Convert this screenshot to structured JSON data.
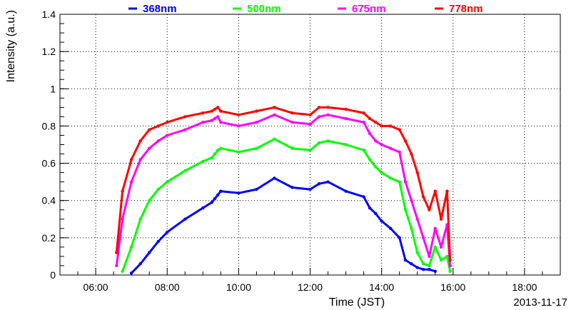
{
  "chart_data": {
    "type": "scatter",
    "title": "",
    "xlabel": "Time (JST)",
    "ylabel": "Intensity (a.u.)",
    "date": "2013-11-17",
    "xlim": [
      "05:00",
      "19:00"
    ],
    "ylim": [
      0,
      1.4
    ],
    "grid": true,
    "legend_position": "top",
    "x_ticks": [
      "06:00",
      "08:00",
      "10:00",
      "12:00",
      "14:00",
      "16:00",
      "18:00"
    ],
    "y_ticks": [
      "0",
      "0.2",
      "0.4",
      "0.6",
      "0.8",
      "1",
      "1.2",
      "1.4"
    ],
    "x": [
      "06:35",
      "06:45",
      "07:00",
      "07:15",
      "07:30",
      "07:45",
      "08:00",
      "08:30",
      "09:00",
      "09:15",
      "09:20",
      "09:25",
      "09:30",
      "10:00",
      "10:30",
      "11:00",
      "11:30",
      "12:00",
      "12:15",
      "12:30",
      "13:00",
      "13:30",
      "13:40",
      "13:50",
      "14:00",
      "14:15",
      "14:30",
      "14:40",
      "14:50",
      "15:00",
      "15:10",
      "15:20",
      "15:30",
      "15:40",
      "15:50",
      "15:55"
    ],
    "series": [
      {
        "name": "368nm",
        "color": "#0000ff",
        "values": [
          null,
          null,
          0.01,
          0.06,
          0.12,
          0.18,
          0.23,
          0.3,
          0.36,
          0.39,
          0.41,
          0.43,
          0.45,
          0.44,
          0.46,
          0.52,
          0.47,
          0.46,
          0.49,
          0.5,
          0.45,
          0.42,
          0.36,
          0.33,
          0.29,
          0.25,
          0.2,
          0.08,
          0.06,
          0.04,
          0.03,
          0.03,
          0.02,
          null,
          null,
          null
        ]
      },
      {
        "name": "500nm",
        "color": "#00ff00",
        "values": [
          null,
          0.02,
          0.15,
          0.3,
          0.4,
          0.46,
          0.5,
          0.56,
          0.61,
          0.63,
          0.65,
          0.67,
          0.68,
          0.66,
          0.68,
          0.73,
          0.68,
          0.67,
          0.71,
          0.72,
          0.7,
          0.67,
          0.62,
          0.58,
          0.55,
          0.52,
          0.5,
          0.35,
          0.25,
          0.12,
          0.06,
          0.05,
          0.15,
          0.08,
          0.1,
          0.02
        ]
      },
      {
        "name": "675nm",
        "color": "#ff00ff",
        "values": [
          0.05,
          0.3,
          0.5,
          0.62,
          0.68,
          0.72,
          0.75,
          0.78,
          0.82,
          0.83,
          0.84,
          0.85,
          0.82,
          0.8,
          0.82,
          0.86,
          0.82,
          0.81,
          0.85,
          0.86,
          0.84,
          0.82,
          0.76,
          0.72,
          0.7,
          0.68,
          0.66,
          0.5,
          0.4,
          0.3,
          0.2,
          0.1,
          0.25,
          0.15,
          0.27,
          0.05
        ]
      },
      {
        "name": "778nm",
        "color": "#ff0000",
        "values": [
          0.12,
          0.45,
          0.62,
          0.72,
          0.78,
          0.8,
          0.82,
          0.85,
          0.87,
          0.88,
          0.89,
          0.9,
          0.88,
          0.86,
          0.88,
          0.9,
          0.87,
          0.86,
          0.9,
          0.9,
          0.89,
          0.87,
          0.84,
          0.82,
          0.8,
          0.8,
          0.78,
          0.72,
          0.65,
          0.55,
          0.42,
          0.35,
          0.45,
          0.3,
          0.45,
          0.08
        ]
      }
    ]
  }
}
